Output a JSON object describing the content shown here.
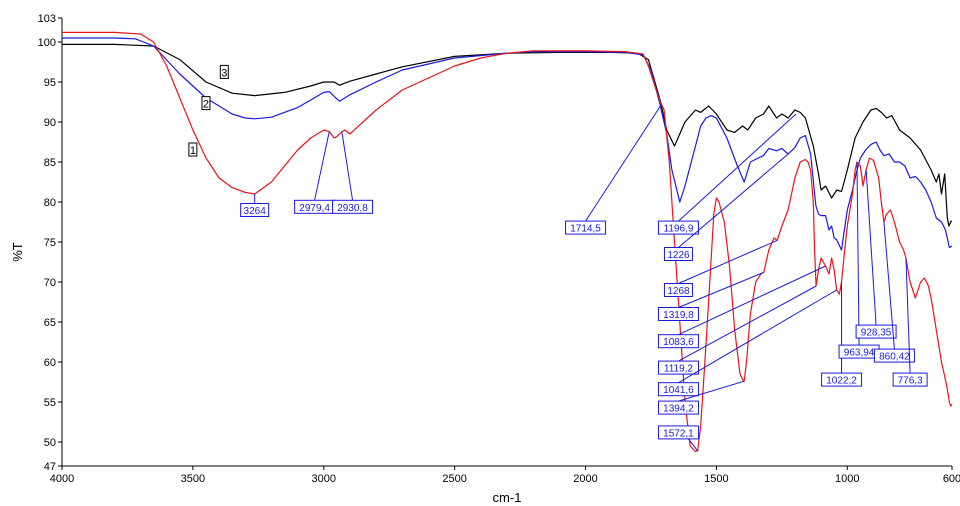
{
  "chart_data": {
    "type": "line",
    "xlabel": "cm-1",
    "ylabel": "%T",
    "xlim": [
      4000,
      600
    ],
    "ylim": [
      47,
      103
    ],
    "x_reversed": true,
    "x_ticks": [
      4000,
      3500,
      3000,
      2500,
      2000,
      1500,
      1000,
      600
    ],
    "y_ticks": [
      47,
      50,
      55,
      60,
      65,
      70,
      75,
      80,
      85,
      90,
      95,
      100,
      103
    ],
    "grid": false,
    "colors": {
      "1": "#e8141e",
      "2": "#1a1adf",
      "3": "#000000",
      "annotation": "#1a1adf"
    },
    "series": [
      {
        "id": "3",
        "color": "#000000",
        "label_at": [
          3380,
          96.2
        ],
        "points": [
          [
            4000,
            99.7
          ],
          [
            3800,
            99.7
          ],
          [
            3650,
            99.5
          ],
          [
            3550,
            97.8
          ],
          [
            3450,
            95.0
          ],
          [
            3350,
            93.6
          ],
          [
            3264,
            93.3
          ],
          [
            3150,
            93.7
          ],
          [
            3050,
            94.5
          ],
          [
            3000,
            95.0
          ],
          [
            2960,
            95.0
          ],
          [
            2940,
            94.6
          ],
          [
            2900,
            95.1
          ],
          [
            2800,
            96.0
          ],
          [
            2700,
            96.9
          ],
          [
            2500,
            98.2
          ],
          [
            2300,
            98.6
          ],
          [
            2100,
            98.7
          ],
          [
            1900,
            98.7
          ],
          [
            1800,
            98.6
          ],
          [
            1760,
            97.8
          ],
          [
            1714,
            92.6
          ],
          [
            1690,
            89.0
          ],
          [
            1660,
            87.0
          ],
          [
            1620,
            90.0
          ],
          [
            1580,
            91.5
          ],
          [
            1560,
            91.2
          ],
          [
            1530,
            92.0
          ],
          [
            1500,
            91.0
          ],
          [
            1460,
            89.0
          ],
          [
            1430,
            88.7
          ],
          [
            1400,
            89.5
          ],
          [
            1380,
            89.0
          ],
          [
            1350,
            90.5
          ],
          [
            1320,
            91.0
          ],
          [
            1300,
            92.0
          ],
          [
            1270,
            90.5
          ],
          [
            1250,
            91.0
          ],
          [
            1226,
            90.5
          ],
          [
            1200,
            91.5
          ],
          [
            1180,
            91.2
          ],
          [
            1160,
            90.5
          ],
          [
            1130,
            87.0
          ],
          [
            1110,
            83.5
          ],
          [
            1100,
            81.5
          ],
          [
            1083,
            82.0
          ],
          [
            1060,
            80.5
          ],
          [
            1040,
            81.5
          ],
          [
            1022,
            81.3
          ],
          [
            1000,
            84.0
          ],
          [
            970,
            88.0
          ],
          [
            940,
            90.0
          ],
          [
            910,
            91.5
          ],
          [
            890,
            91.7
          ],
          [
            870,
            91.2
          ],
          [
            850,
            90.5
          ],
          [
            830,
            90.8
          ],
          [
            800,
            89.0
          ],
          [
            760,
            88.0
          ],
          [
            720,
            86.5
          ],
          [
            680,
            84.0
          ],
          [
            660,
            82.5
          ],
          [
            650,
            83.5
          ],
          [
            640,
            81.0
          ],
          [
            628,
            83.5
          ],
          [
            618,
            78.0
          ],
          [
            612,
            77.0
          ],
          [
            604,
            77.6
          ],
          [
            600,
            77.6
          ]
        ]
      },
      {
        "id": "2",
        "color": "#1a1adf",
        "label_at": [
          3450,
          92.3
        ],
        "points": [
          [
            4000,
            100.5
          ],
          [
            3800,
            100.5
          ],
          [
            3720,
            100.4
          ],
          [
            3650,
            99.5
          ],
          [
            3550,
            96.0
          ],
          [
            3450,
            93.0
          ],
          [
            3350,
            91.0
          ],
          [
            3300,
            90.5
          ],
          [
            3264,
            90.4
          ],
          [
            3200,
            90.6
          ],
          [
            3100,
            91.8
          ],
          [
            3000,
            93.7
          ],
          [
            2979,
            93.8
          ],
          [
            2960,
            93.2
          ],
          [
            2940,
            92.6
          ],
          [
            2920,
            93.0
          ],
          [
            2900,
            93.4
          ],
          [
            2800,
            95.0
          ],
          [
            2700,
            96.5
          ],
          [
            2500,
            98.0
          ],
          [
            2300,
            98.6
          ],
          [
            2200,
            98.8
          ],
          [
            2000,
            98.8
          ],
          [
            1850,
            98.7
          ],
          [
            1780,
            98.4
          ],
          [
            1750,
            96.5
          ],
          [
            1714,
            92.0
          ],
          [
            1690,
            88.5
          ],
          [
            1670,
            84.0
          ],
          [
            1640,
            80.0
          ],
          [
            1620,
            82.0
          ],
          [
            1600,
            84.5
          ],
          [
            1580,
            87.0
          ],
          [
            1560,
            89.5
          ],
          [
            1540,
            90.5
          ],
          [
            1520,
            90.8
          ],
          [
            1500,
            90.5
          ],
          [
            1460,
            88.0
          ],
          [
            1420,
            84.5
          ],
          [
            1394,
            82.5
          ],
          [
            1370,
            85.0
          ],
          [
            1340,
            85.5
          ],
          [
            1320,
            85.8
          ],
          [
            1300,
            86.7
          ],
          [
            1270,
            86.4
          ],
          [
            1250,
            86.7
          ],
          [
            1226,
            86.0
          ],
          [
            1200,
            86.8
          ],
          [
            1180,
            88.0
          ],
          [
            1160,
            88.3
          ],
          [
            1140,
            86.0
          ],
          [
            1120,
            79.5
          ],
          [
            1110,
            78.5
          ],
          [
            1100,
            78.3
          ],
          [
            1083,
            78.3
          ],
          [
            1070,
            76.5
          ],
          [
            1060,
            77.0
          ],
          [
            1050,
            75.5
          ],
          [
            1041,
            75.3
          ],
          [
            1022,
            74.0
          ],
          [
            1000,
            79.0
          ],
          [
            980,
            81.5
          ],
          [
            963,
            84.0
          ],
          [
            950,
            85.5
          ],
          [
            930,
            86.5
          ],
          [
            910,
            87.2
          ],
          [
            890,
            87.5
          ],
          [
            875,
            86.5
          ],
          [
            860,
            85.8
          ],
          [
            840,
            86.0
          ],
          [
            820,
            85.0
          ],
          [
            800,
            85.0
          ],
          [
            780,
            84.5
          ],
          [
            760,
            83.0
          ],
          [
            740,
            83.2
          ],
          [
            720,
            82.5
          ],
          [
            700,
            81.5
          ],
          [
            680,
            80.0
          ],
          [
            660,
            78.0
          ],
          [
            640,
            77.5
          ],
          [
            625,
            76.5
          ],
          [
            610,
            74.3
          ],
          [
            600,
            74.5
          ]
        ]
      },
      {
        "id": "1",
        "color": "#e8141e",
        "label_at": [
          3500,
          86.5
        ],
        "points": [
          [
            4000,
            101.2
          ],
          [
            3800,
            101.2
          ],
          [
            3700,
            101.0
          ],
          [
            3650,
            100.0
          ],
          [
            3600,
            97.0
          ],
          [
            3550,
            93.0
          ],
          [
            3500,
            89.0
          ],
          [
            3450,
            85.5
          ],
          [
            3400,
            83.0
          ],
          [
            3350,
            81.8
          ],
          [
            3300,
            81.2
          ],
          [
            3264,
            81.0
          ],
          [
            3200,
            82.5
          ],
          [
            3150,
            84.5
          ],
          [
            3100,
            86.5
          ],
          [
            3050,
            88.0
          ],
          [
            3000,
            89.0
          ],
          [
            2979,
            88.8
          ],
          [
            2960,
            88.0
          ],
          [
            2950,
            88.2
          ],
          [
            2930,
            88.8
          ],
          [
            2920,
            89.0
          ],
          [
            2900,
            88.5
          ],
          [
            2850,
            90.0
          ],
          [
            2800,
            91.5
          ],
          [
            2700,
            94.0
          ],
          [
            2600,
            95.5
          ],
          [
            2500,
            97.0
          ],
          [
            2400,
            98.0
          ],
          [
            2300,
            98.6
          ],
          [
            2200,
            98.9
          ],
          [
            2000,
            98.9
          ],
          [
            1850,
            98.8
          ],
          [
            1780,
            98.5
          ],
          [
            1760,
            97.0
          ],
          [
            1740,
            95.0
          ],
          [
            1714,
            92.5
          ],
          [
            1700,
            91.5
          ],
          [
            1680,
            85.0
          ],
          [
            1660,
            75.0
          ],
          [
            1640,
            65.0
          ],
          [
            1620,
            55.0
          ],
          [
            1600,
            49.5
          ],
          [
            1580,
            48.8
          ],
          [
            1572,
            48.9
          ],
          [
            1560,
            52.0
          ],
          [
            1540,
            62.0
          ],
          [
            1520,
            73.0
          ],
          [
            1510,
            78.5
          ],
          [
            1500,
            80.5
          ],
          [
            1490,
            80.0
          ],
          [
            1470,
            77.5
          ],
          [
            1450,
            72.0
          ],
          [
            1430,
            64.0
          ],
          [
            1410,
            58.5
          ],
          [
            1400,
            57.8
          ],
          [
            1394,
            57.6
          ],
          [
            1385,
            60.0
          ],
          [
            1370,
            66.0
          ],
          [
            1350,
            70.0
          ],
          [
            1330,
            71.0
          ],
          [
            1319,
            71.2
          ],
          [
            1300,
            74.0
          ],
          [
            1280,
            75.5
          ],
          [
            1268,
            75.2
          ],
          [
            1250,
            77.0
          ],
          [
            1226,
            79.0
          ],
          [
            1200,
            83.0
          ],
          [
            1180,
            85.0
          ],
          [
            1160,
            85.3
          ],
          [
            1150,
            85.0
          ],
          [
            1140,
            84.0
          ],
          [
            1130,
            80.0
          ],
          [
            1125,
            74.0
          ],
          [
            1119,
            69.5
          ],
          [
            1110,
            71.5
          ],
          [
            1100,
            73.0
          ],
          [
            1083,
            72.0
          ],
          [
            1070,
            71.0
          ],
          [
            1060,
            73.0
          ],
          [
            1050,
            71.5
          ],
          [
            1041,
            69.0
          ],
          [
            1030,
            68.5
          ],
          [
            1022,
            70.0
          ],
          [
            1010,
            74.0
          ],
          [
            1000,
            77.0
          ],
          [
            980,
            81.0
          ],
          [
            970,
            84.0
          ],
          [
            963,
            85.0
          ],
          [
            950,
            84.5
          ],
          [
            940,
            82.0
          ],
          [
            928,
            84.0
          ],
          [
            915,
            85.5
          ],
          [
            900,
            85.2
          ],
          [
            880,
            83.0
          ],
          [
            870,
            80.0
          ],
          [
            860,
            77.5
          ],
          [
            850,
            78.5
          ],
          [
            835,
            79.0
          ],
          [
            820,
            77.5
          ],
          [
            800,
            75.0
          ],
          [
            785,
            74.0
          ],
          [
            776,
            73.0
          ],
          [
            760,
            70.0
          ],
          [
            740,
            68.0
          ],
          [
            720,
            70.0
          ],
          [
            705,
            70.5
          ],
          [
            690,
            69.5
          ],
          [
            680,
            68.0
          ],
          [
            660,
            64.0
          ],
          [
            640,
            60.0
          ],
          [
            620,
            57.0
          ],
          [
            610,
            55.0
          ],
          [
            605,
            54.5
          ],
          [
            600,
            54.7
          ]
        ]
      }
    ],
    "annotations": [
      {
        "label": "3264",
        "x": 3264,
        "y": 81.0,
        "box": [
          3264,
          79.0
        ]
      },
      {
        "label": "2979,4",
        "x": 2979,
        "y": 88.8,
        "box": [
          3035,
          79.4
        ]
      },
      {
        "label": "2930,8",
        "x": 2931,
        "y": 88.8,
        "box": [
          2890,
          79.4
        ]
      },
      {
        "label": "1714,5",
        "x": 1714,
        "y": 92.0,
        "box": [
          2000,
          76.8
        ]
      },
      {
        "label": "1196,9",
        "x": 1196,
        "y": 91.0,
        "box": [
          1645,
          76.8
        ]
      },
      {
        "label": "1226",
        "x": 1226,
        "y": 86.0,
        "box": [
          1645,
          73.5
        ]
      },
      {
        "label": "1268",
        "x": 1268,
        "y": 75.2,
        "box": [
          1645,
          69.0
        ]
      },
      {
        "label": "1319,8",
        "x": 1319,
        "y": 71.2,
        "box": [
          1645,
          66.0
        ]
      },
      {
        "label": "1083,6",
        "x": 1083,
        "y": 72.0,
        "box": [
          1645,
          62.6
        ]
      },
      {
        "label": "1119,2",
        "x": 1119,
        "y": 69.5,
        "box": [
          1645,
          59.3
        ]
      },
      {
        "label": "1041,6",
        "x": 1041,
        "y": 69.0,
        "box": [
          1645,
          56.6
        ]
      },
      {
        "label": "1394,2",
        "x": 1394,
        "y": 57.6,
        "box": [
          1645,
          54.3
        ]
      },
      {
        "label": "1572,1",
        "x": 1572,
        "y": 48.9,
        "box": [
          1645,
          51.2
        ]
      },
      {
        "label": "1022,2",
        "x": 1022,
        "y": 70.0,
        "box": [
          1022,
          57.8
        ]
      },
      {
        "label": "963,94",
        "x": 963,
        "y": 85.0,
        "box": [
          955,
          61.3
        ]
      },
      {
        "label": "928,35",
        "x": 928,
        "y": 84.0,
        "box": [
          890,
          63.8
        ]
      },
      {
        "label": "860,42",
        "x": 860,
        "y": 77.5,
        "box": [
          820,
          60.8
        ]
      },
      {
        "label": "776,3",
        "x": 776,
        "y": 73.0,
        "box": [
          760,
          57.8
        ]
      }
    ]
  }
}
